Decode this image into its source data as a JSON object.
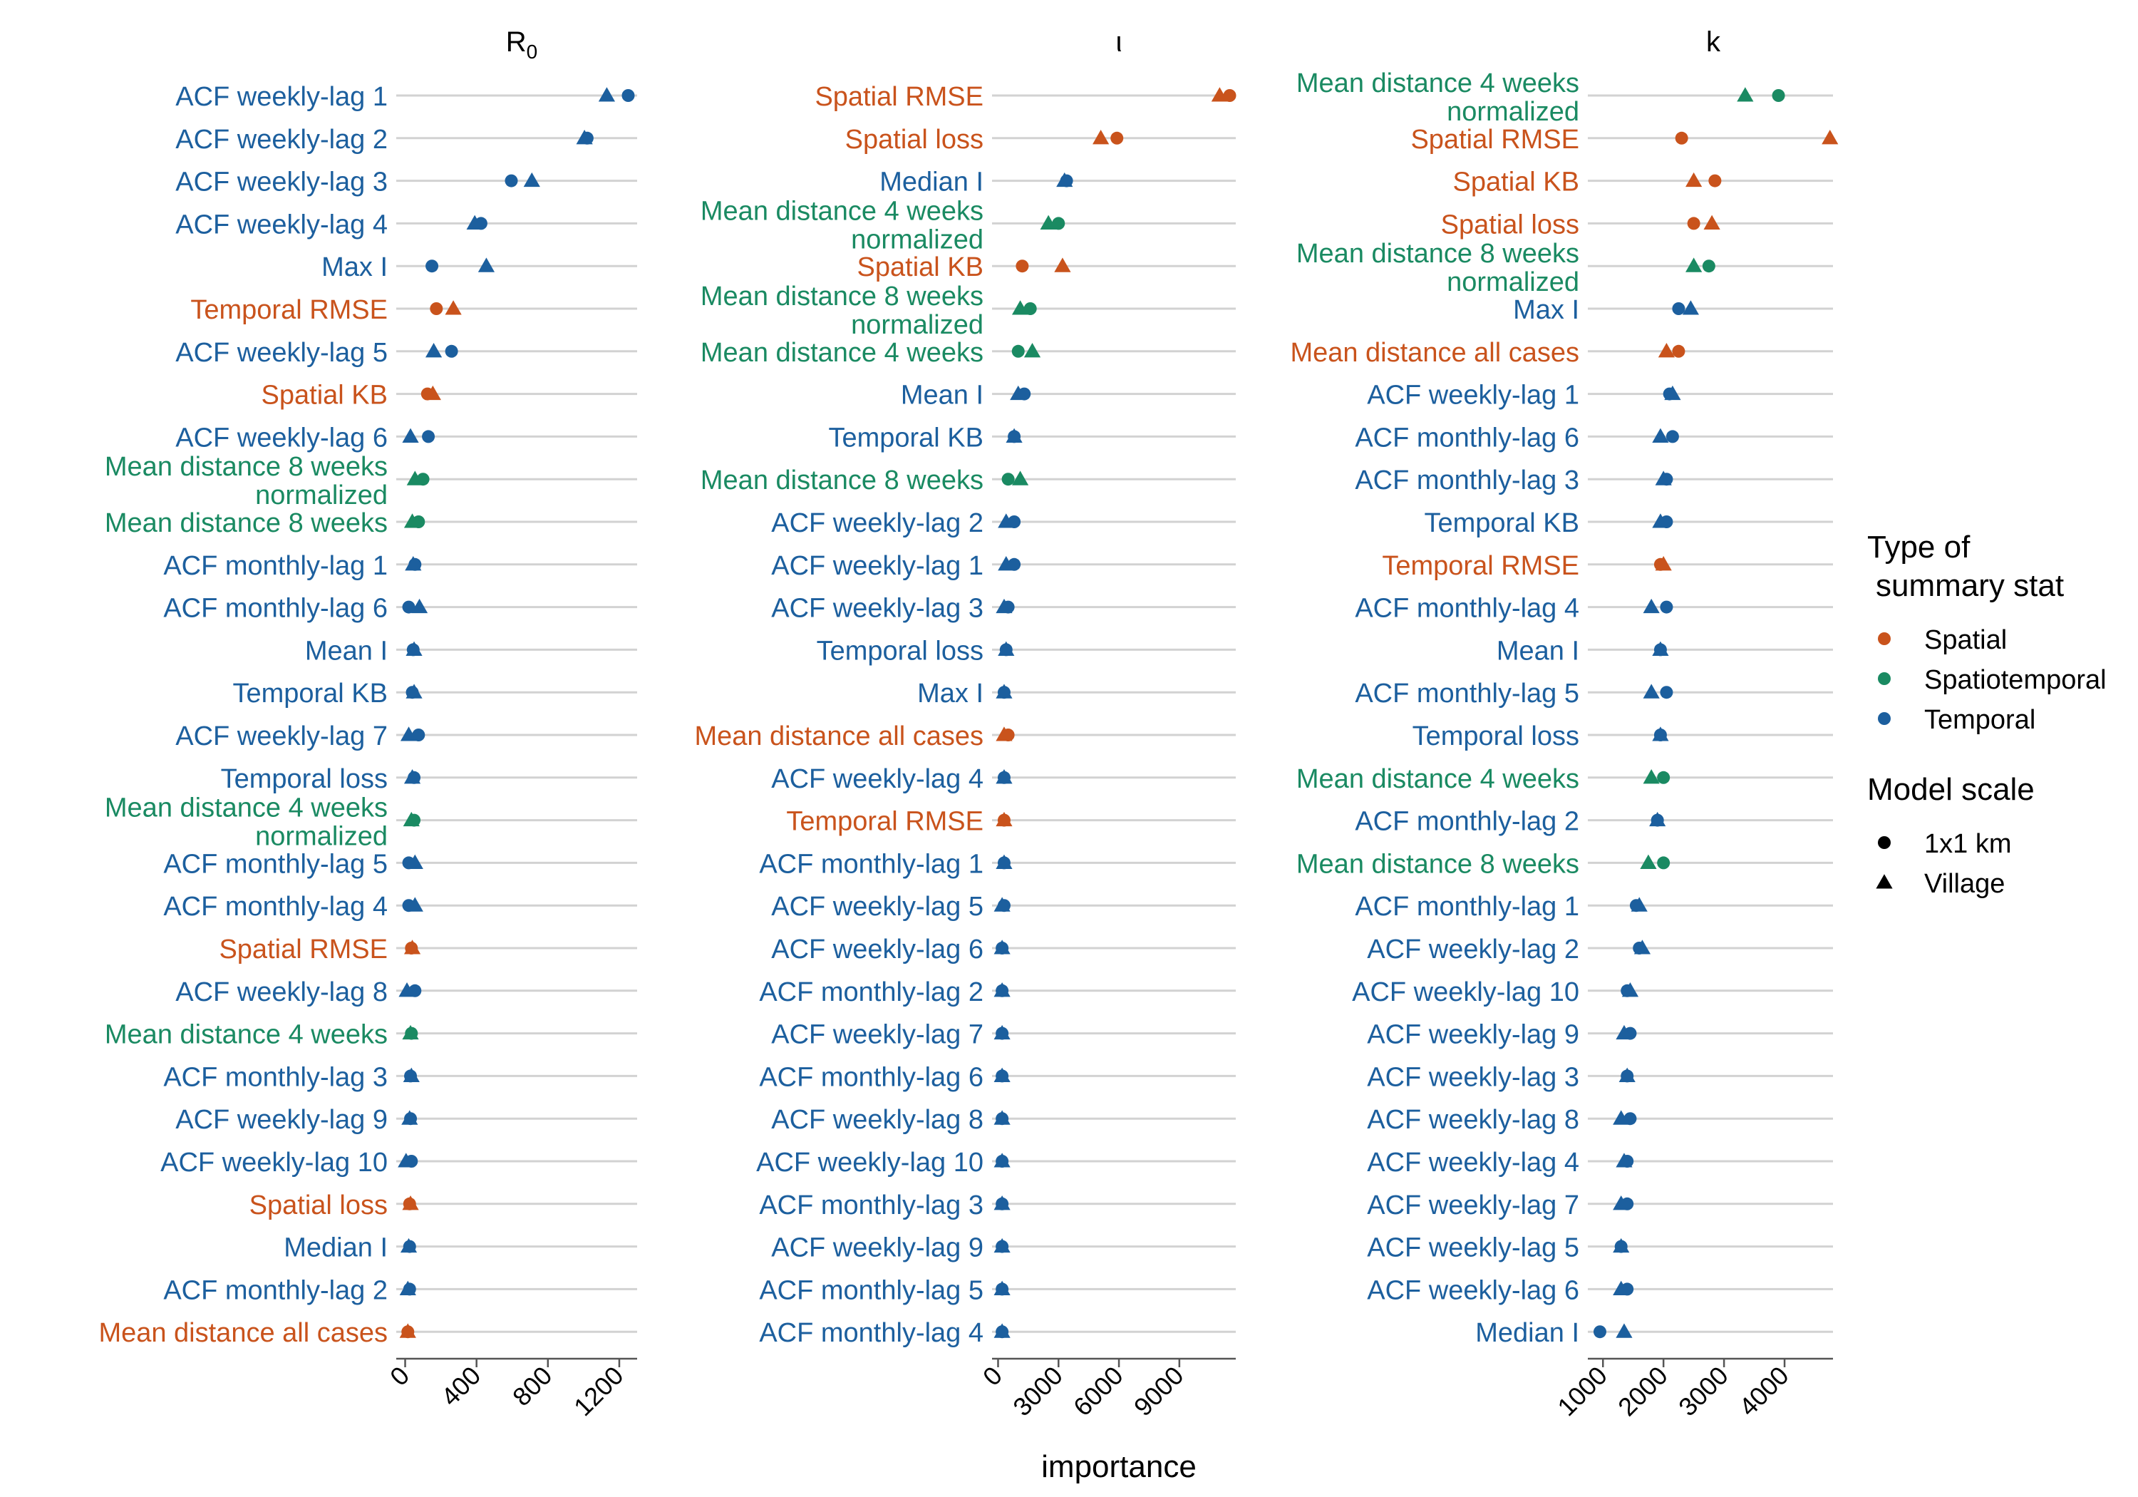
{
  "colors": {
    "spatial": "#c9531c",
    "spatiotemporal": "#1a8a62",
    "temporal": "#1c5f9e",
    "grid": "#d2d2d2",
    "axis": "#555555",
    "text": "#000000"
  },
  "xlabel": "importance",
  "legend": {
    "type_title_1": "Type of",
    "type_title_2": "summary stat",
    "type_items": [
      {
        "label": "Spatial",
        "key": "spatial"
      },
      {
        "label": "Spatiotemporal",
        "key": "spatiotemporal"
      },
      {
        "label": "Temporal",
        "key": "temporal"
      }
    ],
    "scale_title": "Model scale",
    "scale_items": [
      {
        "label": "1x1 km",
        "shape": "circle"
      },
      {
        "label": "Village",
        "shape": "triangle"
      }
    ]
  },
  "chart_data": [
    {
      "type": "scatter",
      "title_main": "R",
      "title_sub": "0",
      "xlim": [
        -50,
        1300
      ],
      "xticks": [
        0,
        400,
        800,
        1200
      ],
      "rows": [
        {
          "label": [
            "ACF weekly-lag 1"
          ],
          "cat": "temporal",
          "km": 1250,
          "village": 1130
        },
        {
          "label": [
            "ACF weekly-lag 2"
          ],
          "cat": "temporal",
          "km": 1020,
          "village": 1005
        },
        {
          "label": [
            "ACF weekly-lag 3"
          ],
          "cat": "temporal",
          "km": 595,
          "village": 710
        },
        {
          "label": [
            "ACF weekly-lag 4"
          ],
          "cat": "temporal",
          "km": 425,
          "village": 390
        },
        {
          "label": [
            "Max I"
          ],
          "cat": "temporal",
          "km": 150,
          "village": 455
        },
        {
          "label": [
            "Temporal RMSE"
          ],
          "cat": "spatial",
          "km": 175,
          "village": 270
        },
        {
          "label": [
            "ACF weekly-lag 5"
          ],
          "cat": "temporal",
          "km": 260,
          "village": 160
        },
        {
          "label": [
            "Spatial KB"
          ],
          "cat": "spatial",
          "km": 125,
          "village": 155
        },
        {
          "label": [
            "ACF weekly-lag 6"
          ],
          "cat": "temporal",
          "km": 130,
          "village": 30
        },
        {
          "label": [
            "Mean distance 8 weeks",
            "normalized"
          ],
          "cat": "spatiotemporal",
          "km": 100,
          "village": 55
        },
        {
          "label": [
            "Mean distance 8 weeks"
          ],
          "cat": "spatiotemporal",
          "km": 75,
          "village": 40
        },
        {
          "label": [
            "ACF monthly-lag 1"
          ],
          "cat": "temporal",
          "km": 55,
          "village": 45
        },
        {
          "label": [
            "ACF monthly-lag 6"
          ],
          "cat": "temporal",
          "km": 20,
          "village": 80
        },
        {
          "label": [
            "Mean I"
          ],
          "cat": "temporal",
          "km": 45,
          "village": 50
        },
        {
          "label": [
            "Temporal KB"
          ],
          "cat": "temporal",
          "km": 40,
          "village": 50
        },
        {
          "label": [
            "ACF weekly-lag 7"
          ],
          "cat": "temporal",
          "km": 75,
          "village": 20
        },
        {
          "label": [
            "Temporal loss"
          ],
          "cat": "temporal",
          "km": 50,
          "village": 40
        },
        {
          "label": [
            "Mean distance 4 weeks",
            "normalized"
          ],
          "cat": "spatiotemporal",
          "km": 50,
          "village": 35
        },
        {
          "label": [
            "ACF monthly-lag 5"
          ],
          "cat": "temporal",
          "km": 20,
          "village": 55
        },
        {
          "label": [
            "ACF monthly-lag 4"
          ],
          "cat": "temporal",
          "km": 20,
          "village": 55
        },
        {
          "label": [
            "Spatial RMSE"
          ],
          "cat": "spatial",
          "km": 35,
          "village": 40
        },
        {
          "label": [
            "ACF weekly-lag 8"
          ],
          "cat": "temporal",
          "km": 55,
          "village": 10
        },
        {
          "label": [
            "Mean distance 4 weeks"
          ],
          "cat": "spatiotemporal",
          "km": 35,
          "village": 30
        },
        {
          "label": [
            "ACF monthly-lag 3"
          ],
          "cat": "temporal",
          "km": 30,
          "village": 35
        },
        {
          "label": [
            "ACF weekly-lag 9"
          ],
          "cat": "temporal",
          "km": 30,
          "village": 25
        },
        {
          "label": [
            "ACF weekly-lag 10"
          ],
          "cat": "temporal",
          "km": 35,
          "village": 5
        },
        {
          "label": [
            "Spatial loss"
          ],
          "cat": "spatial",
          "km": 25,
          "village": 30
        },
        {
          "label": [
            "Median I"
          ],
          "cat": "temporal",
          "km": 25,
          "village": 20
        },
        {
          "label": [
            "ACF monthly-lag 2"
          ],
          "cat": "temporal",
          "km": 25,
          "village": 15
        },
        {
          "label": [
            "Mean distance all cases"
          ],
          "cat": "spatial",
          "km": 15,
          "village": 15
        }
      ]
    },
    {
      "type": "scatter",
      "title_main": "ι",
      "title_sub": "",
      "xlim": [
        -300,
        11800
      ],
      "xticks": [
        0,
        3000,
        6000,
        9000
      ],
      "rows": [
        {
          "label": [
            "Spatial RMSE"
          ],
          "cat": "spatial",
          "km": 11500,
          "village": 11000
        },
        {
          "label": [
            "Spatial loss"
          ],
          "cat": "spatial",
          "km": 5900,
          "village": 5100
        },
        {
          "label": [
            "Median I"
          ],
          "cat": "temporal",
          "km": 3400,
          "village": 3300
        },
        {
          "label": [
            "Mean distance 4 weeks",
            "normalized"
          ],
          "cat": "spatiotemporal",
          "km": 3000,
          "village": 2500
        },
        {
          "label": [
            "Spatial KB"
          ],
          "cat": "spatial",
          "km": 1200,
          "village": 3200
        },
        {
          "label": [
            "Mean distance 8 weeks",
            "normalized"
          ],
          "cat": "spatiotemporal",
          "km": 1600,
          "village": 1100
        },
        {
          "label": [
            "Mean distance 4 weeks"
          ],
          "cat": "spatiotemporal",
          "km": 1000,
          "village": 1700
        },
        {
          "label": [
            "Mean I"
          ],
          "cat": "temporal",
          "km": 1300,
          "village": 1000
        },
        {
          "label": [
            "Temporal KB"
          ],
          "cat": "temporal",
          "km": 800,
          "village": 800
        },
        {
          "label": [
            "Mean distance 8 weeks"
          ],
          "cat": "spatiotemporal",
          "km": 500,
          "village": 1100
        },
        {
          "label": [
            "ACF weekly-lag 2"
          ],
          "cat": "temporal",
          "km": 800,
          "village": 400
        },
        {
          "label": [
            "ACF weekly-lag 1"
          ],
          "cat": "temporal",
          "km": 800,
          "village": 400
        },
        {
          "label": [
            "ACF weekly-lag 3"
          ],
          "cat": "temporal",
          "km": 500,
          "village": 300
        },
        {
          "label": [
            "Temporal loss"
          ],
          "cat": "temporal",
          "km": 400,
          "village": 400
        },
        {
          "label": [
            "Max I"
          ],
          "cat": "temporal",
          "km": 300,
          "village": 300
        },
        {
          "label": [
            "Mean distance all cases"
          ],
          "cat": "spatial",
          "km": 500,
          "village": 300
        },
        {
          "label": [
            "ACF weekly-lag 4"
          ],
          "cat": "temporal",
          "km": 300,
          "village": 300
        },
        {
          "label": [
            "Temporal RMSE"
          ],
          "cat": "spatial",
          "km": 300,
          "village": 300
        },
        {
          "label": [
            "ACF monthly-lag 1"
          ],
          "cat": "temporal",
          "km": 300,
          "village": 300
        },
        {
          "label": [
            "ACF weekly-lag 5"
          ],
          "cat": "temporal",
          "km": 300,
          "village": 200
        },
        {
          "label": [
            "ACF weekly-lag 6"
          ],
          "cat": "temporal",
          "km": 200,
          "village": 200
        },
        {
          "label": [
            "ACF monthly-lag 2"
          ],
          "cat": "temporal",
          "km": 200,
          "village": 200
        },
        {
          "label": [
            "ACF weekly-lag 7"
          ],
          "cat": "temporal",
          "km": 200,
          "village": 200
        },
        {
          "label": [
            "ACF monthly-lag 6"
          ],
          "cat": "temporal",
          "km": 200,
          "village": 200
        },
        {
          "label": [
            "ACF weekly-lag 8"
          ],
          "cat": "temporal",
          "km": 200,
          "village": 200
        },
        {
          "label": [
            "ACF weekly-lag 10"
          ],
          "cat": "temporal",
          "km": 200,
          "village": 200
        },
        {
          "label": [
            "ACF monthly-lag 3"
          ],
          "cat": "temporal",
          "km": 200,
          "village": 200
        },
        {
          "label": [
            "ACF weekly-lag 9"
          ],
          "cat": "temporal",
          "km": 200,
          "village": 200
        },
        {
          "label": [
            "ACF monthly-lag 5"
          ],
          "cat": "temporal",
          "km": 200,
          "village": 200
        },
        {
          "label": [
            "ACF monthly-lag 4"
          ],
          "cat": "temporal",
          "km": 200,
          "village": 200
        }
      ]
    },
    {
      "type": "scatter",
      "title_main": "k",
      "title_sub": "",
      "xlim": [
        750,
        4800
      ],
      "xticks": [
        1000,
        2000,
        3000,
        4000
      ],
      "rows": [
        {
          "label": [
            "Mean distance 4 weeks",
            "normalized"
          ],
          "cat": "spatiotemporal",
          "km": 3900,
          "village": 3350
        },
        {
          "label": [
            "Spatial RMSE"
          ],
          "cat": "spatial",
          "km": 2300,
          "village": 4750
        },
        {
          "label": [
            "Spatial KB"
          ],
          "cat": "spatial",
          "km": 2850,
          "village": 2500
        },
        {
          "label": [
            "Spatial loss"
          ],
          "cat": "spatial",
          "km": 2500,
          "village": 2800
        },
        {
          "label": [
            "Mean distance 8 weeks",
            "normalized"
          ],
          "cat": "spatiotemporal",
          "km": 2750,
          "village": 2500
        },
        {
          "label": [
            "Max I"
          ],
          "cat": "temporal",
          "km": 2250,
          "village": 2450
        },
        {
          "label": [
            "Mean distance all cases"
          ],
          "cat": "spatial",
          "km": 2250,
          "village": 2050
        },
        {
          "label": [
            "ACF weekly-lag 1"
          ],
          "cat": "temporal",
          "km": 2100,
          "village": 2150
        },
        {
          "label": [
            "ACF monthly-lag 6"
          ],
          "cat": "temporal",
          "km": 2150,
          "village": 1950
        },
        {
          "label": [
            "ACF monthly-lag 3"
          ],
          "cat": "temporal",
          "km": 2050,
          "village": 2000
        },
        {
          "label": [
            "Temporal KB"
          ],
          "cat": "temporal",
          "km": 2050,
          "village": 1950
        },
        {
          "label": [
            "Temporal RMSE"
          ],
          "cat": "spatial",
          "km": 1950,
          "village": 2000
        },
        {
          "label": [
            "ACF monthly-lag 4"
          ],
          "cat": "temporal",
          "km": 2050,
          "village": 1800
        },
        {
          "label": [
            "Mean I"
          ],
          "cat": "temporal",
          "km": 1950,
          "village": 1950
        },
        {
          "label": [
            "ACF monthly-lag 5"
          ],
          "cat": "temporal",
          "km": 2050,
          "village": 1800
        },
        {
          "label": [
            "Temporal loss"
          ],
          "cat": "temporal",
          "km": 1950,
          "village": 1950
        },
        {
          "label": [
            "Mean distance 4 weeks"
          ],
          "cat": "spatiotemporal",
          "km": 2000,
          "village": 1800
        },
        {
          "label": [
            "ACF monthly-lag 2"
          ],
          "cat": "temporal",
          "km": 1900,
          "village": 1900
        },
        {
          "label": [
            "Mean distance 8 weeks"
          ],
          "cat": "spatiotemporal",
          "km": 2000,
          "village": 1750
        },
        {
          "label": [
            "ACF monthly-lag 1"
          ],
          "cat": "temporal",
          "km": 1550,
          "village": 1600
        },
        {
          "label": [
            "ACF weekly-lag 2"
          ],
          "cat": "temporal",
          "km": 1600,
          "village": 1650
        },
        {
          "label": [
            "ACF weekly-lag 10"
          ],
          "cat": "temporal",
          "km": 1400,
          "village": 1450
        },
        {
          "label": [
            "ACF weekly-lag 9"
          ],
          "cat": "temporal",
          "km": 1450,
          "village": 1350
        },
        {
          "label": [
            "ACF weekly-lag 3"
          ],
          "cat": "temporal",
          "km": 1400,
          "village": 1400
        },
        {
          "label": [
            "ACF weekly-lag 8"
          ],
          "cat": "temporal",
          "km": 1450,
          "village": 1300
        },
        {
          "label": [
            "ACF weekly-lag 4"
          ],
          "cat": "temporal",
          "km": 1400,
          "village": 1350
        },
        {
          "label": [
            "ACF weekly-lag 7"
          ],
          "cat": "temporal",
          "km": 1400,
          "village": 1300
        },
        {
          "label": [
            "ACF weekly-lag 5"
          ],
          "cat": "temporal",
          "km": 1300,
          "village": 1300
        },
        {
          "label": [
            "ACF weekly-lag 6"
          ],
          "cat": "temporal",
          "km": 1400,
          "village": 1300
        },
        {
          "label": [
            "Median I"
          ],
          "cat": "temporal",
          "km": 950,
          "village": 1350
        }
      ]
    }
  ]
}
